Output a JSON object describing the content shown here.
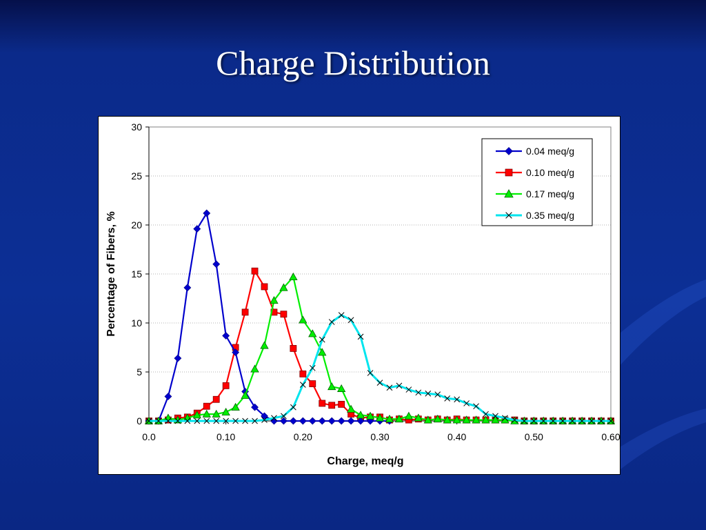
{
  "slide": {
    "title": "Charge Distribution"
  },
  "colors": {
    "background": "#0c2f95",
    "panel": "#ffffff"
  },
  "chart_data": {
    "type": "line",
    "title": "",
    "xlabel": "Charge, meq/g",
    "ylabel": "Percentage of Fibers, %",
    "xlim": [
      0,
      0.6
    ],
    "ylim": [
      0,
      30
    ],
    "x_ticks": [
      0,
      0.1,
      0.2,
      0.3,
      0.4,
      0.5,
      0.6
    ],
    "x_tick_labels": [
      "0.0",
      "0.10",
      "0.20",
      "0.30",
      "0.40",
      "0.50",
      "0.60"
    ],
    "y_ticks": [
      0,
      5,
      10,
      15,
      20,
      25,
      30
    ],
    "y_tick_labels": [
      "0",
      "5",
      "10",
      "15",
      "20",
      "25",
      "30"
    ],
    "grid": "horizontal dotted",
    "legend_position": "top-right",
    "series": [
      {
        "name": "0.04 meq/g",
        "color": "#0000cc",
        "marker": "diamond",
        "points": [
          [
            0,
            0
          ],
          [
            0.0125,
            0
          ],
          [
            0.025,
            2.5
          ],
          [
            0.0375,
            6.4
          ],
          [
            0.05,
            13.6
          ],
          [
            0.0625,
            19.6
          ],
          [
            0.075,
            21.2
          ],
          [
            0.0875,
            16
          ],
          [
            0.1,
            8.7
          ],
          [
            0.1125,
            7
          ],
          [
            0.125,
            3
          ],
          [
            0.1375,
            1.4
          ],
          [
            0.15,
            0.5
          ],
          [
            0.1625,
            0
          ],
          [
            0.175,
            0
          ],
          [
            0.1875,
            0
          ],
          [
            0.2,
            0
          ],
          [
            0.2125,
            0
          ],
          [
            0.225,
            0
          ],
          [
            0.2375,
            0
          ],
          [
            0.25,
            0
          ],
          [
            0.2625,
            0
          ],
          [
            0.275,
            0
          ],
          [
            0.2875,
            0
          ],
          [
            0.3,
            0
          ],
          [
            0.3125,
            0
          ]
        ]
      },
      {
        "name": "0.10 meq/g",
        "color": "#ff0000",
        "marker": "square",
        "points": [
          [
            0,
            0
          ],
          [
            0.0125,
            0
          ],
          [
            0.025,
            0.1
          ],
          [
            0.0375,
            0.3
          ],
          [
            0.05,
            0.4
          ],
          [
            0.0625,
            0.8
          ],
          [
            0.075,
            1.5
          ],
          [
            0.0875,
            2.2
          ],
          [
            0.1,
            3.6
          ],
          [
            0.1125,
            7.5
          ],
          [
            0.125,
            11.1
          ],
          [
            0.1375,
            15.3
          ],
          [
            0.15,
            13.7
          ],
          [
            0.1625,
            11.1
          ],
          [
            0.175,
            10.9
          ],
          [
            0.1875,
            7.4
          ],
          [
            0.2,
            4.8
          ],
          [
            0.2125,
            3.8
          ],
          [
            0.225,
            1.8
          ],
          [
            0.2375,
            1.6
          ],
          [
            0.25,
            1.7
          ],
          [
            0.2625,
            0.7
          ],
          [
            0.275,
            0.3
          ],
          [
            0.2875,
            0.4
          ],
          [
            0.3,
            0.4
          ],
          [
            0.3125,
            0.1
          ],
          [
            0.325,
            0.2
          ],
          [
            0.3375,
            0.1
          ],
          [
            0.35,
            0.2
          ],
          [
            0.3625,
            0.1
          ],
          [
            0.375,
            0.2
          ],
          [
            0.3875,
            0.1
          ],
          [
            0.4,
            0.2
          ],
          [
            0.4125,
            0.1
          ],
          [
            0.425,
            0.1
          ],
          [
            0.4375,
            0.1
          ],
          [
            0.45,
            0.1
          ],
          [
            0.4625,
            0.1
          ],
          [
            0.475,
            0.1
          ],
          [
            0.4875,
            0
          ],
          [
            0.5,
            0
          ],
          [
            0.5125,
            0
          ],
          [
            0.525,
            0
          ],
          [
            0.5375,
            0
          ],
          [
            0.55,
            0
          ],
          [
            0.5625,
            0
          ],
          [
            0.575,
            0
          ],
          [
            0.5875,
            0
          ],
          [
            0.6,
            0
          ]
        ]
      },
      {
        "name": "0.17 meq/g",
        "color": "#00ee00",
        "marker": "triangle",
        "points": [
          [
            0,
            0
          ],
          [
            0.0125,
            0
          ],
          [
            0.025,
            0.3
          ],
          [
            0.0375,
            0.1
          ],
          [
            0.05,
            0.3
          ],
          [
            0.0625,
            0.6
          ],
          [
            0.075,
            0.7
          ],
          [
            0.0875,
            0.7
          ],
          [
            0.1,
            0.9
          ],
          [
            0.1125,
            1.4
          ],
          [
            0.125,
            2.6
          ],
          [
            0.1375,
            5.3
          ],
          [
            0.15,
            7.7
          ],
          [
            0.1625,
            12.3
          ],
          [
            0.175,
            13.6
          ],
          [
            0.1875,
            14.7
          ],
          [
            0.2,
            10.3
          ],
          [
            0.2125,
            8.9
          ],
          [
            0.225,
            7
          ],
          [
            0.2375,
            3.5
          ],
          [
            0.25,
            3.3
          ],
          [
            0.2625,
            1.2
          ],
          [
            0.275,
            0.6
          ],
          [
            0.2875,
            0.5
          ],
          [
            0.3,
            0.3
          ],
          [
            0.3125,
            0.2
          ],
          [
            0.325,
            0.2
          ],
          [
            0.3375,
            0.5
          ],
          [
            0.35,
            0.3
          ],
          [
            0.3625,
            0.1
          ],
          [
            0.375,
            0.2
          ],
          [
            0.3875,
            0.1
          ],
          [
            0.4,
            0.1
          ],
          [
            0.4125,
            0.1
          ],
          [
            0.425,
            0.1
          ],
          [
            0.4375,
            0.1
          ],
          [
            0.45,
            0.1
          ],
          [
            0.4625,
            0.1
          ],
          [
            0.475,
            0
          ],
          [
            0.4875,
            0
          ],
          [
            0.5,
            0
          ],
          [
            0.5125,
            0
          ],
          [
            0.525,
            0
          ],
          [
            0.5375,
            0
          ],
          [
            0.55,
            0
          ],
          [
            0.5625,
            0
          ],
          [
            0.575,
            0
          ],
          [
            0.5875,
            0
          ],
          [
            0.6,
            0
          ]
        ]
      },
      {
        "name": "0.35 meq/g",
        "color": "#00e5ee",
        "marker": "x",
        "points": [
          [
            0,
            0
          ],
          [
            0.0125,
            0
          ],
          [
            0.025,
            0
          ],
          [
            0.0375,
            0
          ],
          [
            0.05,
            0
          ],
          [
            0.0625,
            0
          ],
          [
            0.075,
            0
          ],
          [
            0.0875,
            0
          ],
          [
            0.1,
            0
          ],
          [
            0.1125,
            0
          ],
          [
            0.125,
            0
          ],
          [
            0.1375,
            0
          ],
          [
            0.15,
            0.1
          ],
          [
            0.1625,
            0.3
          ],
          [
            0.175,
            0.5
          ],
          [
            0.1875,
            1.4
          ],
          [
            0.2,
            3.7
          ],
          [
            0.2125,
            5.4
          ],
          [
            0.225,
            8.3
          ],
          [
            0.2375,
            10.1
          ],
          [
            0.25,
            10.8
          ],
          [
            0.2625,
            10.3
          ],
          [
            0.275,
            8.6
          ],
          [
            0.2875,
            4.9
          ],
          [
            0.3,
            3.9
          ],
          [
            0.3125,
            3.4
          ],
          [
            0.325,
            3.6
          ],
          [
            0.3375,
            3.2
          ],
          [
            0.35,
            2.9
          ],
          [
            0.3625,
            2.8
          ],
          [
            0.375,
            2.7
          ],
          [
            0.3875,
            2.3
          ],
          [
            0.4,
            2.2
          ],
          [
            0.4125,
            1.8
          ],
          [
            0.425,
            1.5
          ],
          [
            0.4375,
            0.7
          ],
          [
            0.45,
            0.5
          ],
          [
            0.4625,
            0.3
          ],
          [
            0.475,
            0.1
          ],
          [
            0.4875,
            0
          ],
          [
            0.5,
            0
          ],
          [
            0.5125,
            0
          ],
          [
            0.525,
            0
          ],
          [
            0.5375,
            0
          ],
          [
            0.55,
            0
          ],
          [
            0.5625,
            0
          ],
          [
            0.575,
            0
          ],
          [
            0.5875,
            0
          ],
          [
            0.6,
            0
          ]
        ]
      }
    ]
  }
}
